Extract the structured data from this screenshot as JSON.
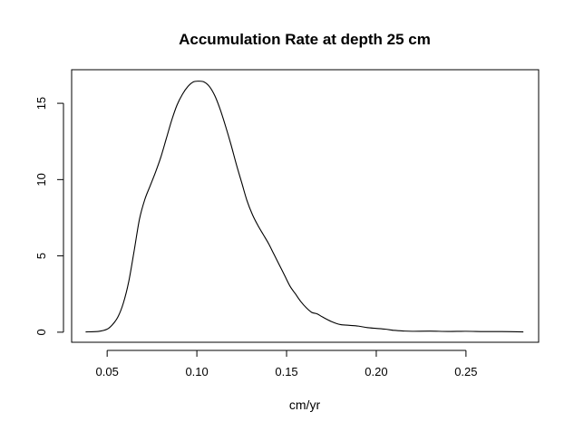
{
  "chart_data": {
    "type": "line",
    "title": "Accumulation Rate at depth 25 cm",
    "xlabel": "cm/yr",
    "ylabel": "",
    "xlim": [
      0.0302,
      0.2905
    ],
    "ylim": [
      -0.66,
      17.2
    ],
    "x_ticks": [
      0.05,
      0.1,
      0.15,
      0.2,
      0.25
    ],
    "x_tick_labels": [
      "0.05",
      "0.10",
      "0.15",
      "0.20",
      "0.25"
    ],
    "y_ticks": [
      0,
      5,
      10,
      15
    ],
    "y_tick_labels": [
      "0",
      "5",
      "10",
      "15"
    ],
    "grid": false,
    "legend": "none",
    "line_color": "#000000",
    "series": [
      {
        "x": [
          0.038,
          0.045,
          0.05,
          0.053,
          0.056,
          0.059,
          0.062,
          0.065,
          0.068,
          0.071,
          0.074,
          0.077,
          0.08,
          0.083,
          0.086,
          0.089,
          0.092,
          0.095,
          0.098,
          0.101,
          0.104,
          0.107,
          0.11,
          0.113,
          0.116,
          0.119,
          0.122,
          0.125,
          0.128,
          0.131,
          0.134,
          0.137,
          0.14,
          0.143,
          0.146,
          0.149,
          0.152,
          0.155,
          0.158,
          0.161,
          0.164,
          0.167,
          0.17,
          0.175,
          0.18,
          0.185,
          0.19,
          0.195,
          0.2,
          0.205,
          0.21,
          0.215,
          0.22,
          0.23,
          0.24,
          0.25,
          0.26,
          0.27,
          0.282
        ],
        "y": [
          0.02,
          0.05,
          0.2,
          0.5,
          1.0,
          1.9,
          3.3,
          5.3,
          7.4,
          8.7,
          9.6,
          10.5,
          11.5,
          12.7,
          13.9,
          14.9,
          15.6,
          16.1,
          16.4,
          16.45,
          16.4,
          16.1,
          15.5,
          14.6,
          13.5,
          12.3,
          11.0,
          9.8,
          8.6,
          7.7,
          7.0,
          6.4,
          5.8,
          5.1,
          4.4,
          3.7,
          3.0,
          2.5,
          2.0,
          1.6,
          1.3,
          1.2,
          1.0,
          0.7,
          0.5,
          0.45,
          0.4,
          0.3,
          0.25,
          0.2,
          0.12,
          0.08,
          0.06,
          0.07,
          0.05,
          0.06,
          0.04,
          0.04,
          0.02
        ]
      }
    ]
  }
}
